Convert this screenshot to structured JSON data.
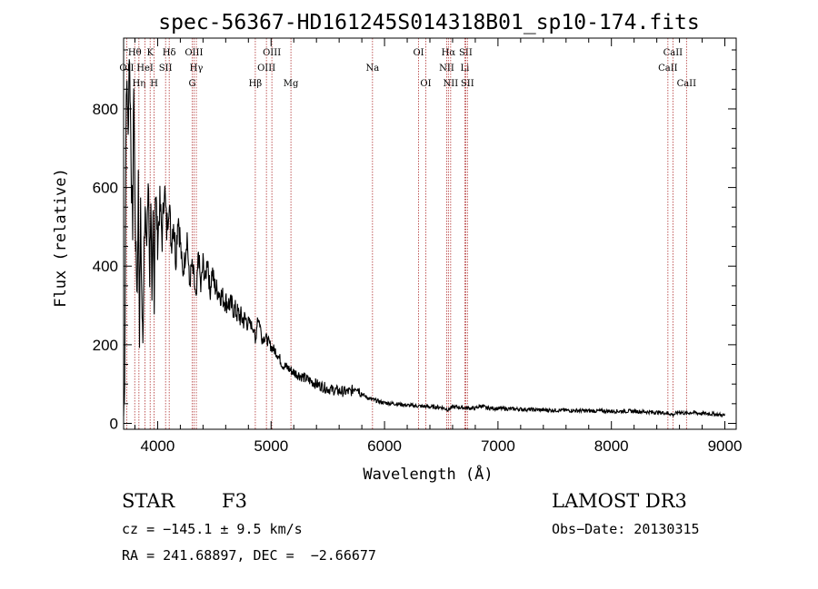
{
  "chart_data": {
    "type": "line",
    "title": "spec-56367-HD161245S014318B01_sp10-174.fits",
    "xlabel": "Wavelength (Å)",
    "ylabel": "Flux (relative)",
    "xlim": [
      3700,
      9100
    ],
    "ylim": [
      -15,
      980
    ],
    "xticks": [
      4000,
      5000,
      6000,
      7000,
      8000,
      9000
    ],
    "yticks": [
      0,
      200,
      400,
      600,
      800
    ],
    "xtick_labels": [
      "4000",
      "5000",
      "6000",
      "7000",
      "8000",
      "9000"
    ],
    "ytick_labels": [
      "0",
      "200",
      "400",
      "600",
      "800"
    ],
    "series": [
      {
        "name": "spectrum",
        "x": [
          3700,
          3710,
          3720,
          3730,
          3740,
          3750,
          3760,
          3770,
          3780,
          3790,
          3800,
          3810,
          3820,
          3830,
          3840,
          3850,
          3860,
          3870,
          3880,
          3890,
          3900,
          3910,
          3920,
          3930,
          3940,
          3950,
          3960,
          3970,
          3980,
          3990,
          4000,
          4020,
          4040,
          4060,
          4080,
          4100,
          4120,
          4140,
          4160,
          4180,
          4200,
          4220,
          4240,
          4260,
          4280,
          4300,
          4320,
          4340,
          4360,
          4380,
          4400,
          4420,
          4440,
          4460,
          4480,
          4500,
          4550,
          4600,
          4650,
          4700,
          4750,
          4800,
          4850,
          4861,
          4880,
          4900,
          4920,
          4950,
          5000,
          5050,
          5100,
          5150,
          5200,
          5300,
          5400,
          5500,
          5600,
          5700,
          5750,
          5800,
          5850,
          5900,
          6000,
          6100,
          6200,
          6300,
          6400,
          6500,
          6563,
          6600,
          6700,
          6800,
          6850,
          6900,
          7000,
          7200,
          7400,
          7600,
          7800,
          8000,
          8200,
          8400,
          8498,
          8542,
          8600,
          8662,
          8700,
          8800,
          8900,
          9000
        ],
        "y": [
          20,
          120,
          760,
          880,
          720,
          950,
          800,
          600,
          500,
          880,
          560,
          420,
          330,
          620,
          230,
          540,
          320,
          190,
          480,
          560,
          430,
          540,
          600,
          370,
          580,
          270,
          520,
          320,
          600,
          540,
          460,
          560,
          470,
          610,
          490,
          570,
          460,
          520,
          420,
          540,
          460,
          380,
          420,
          480,
          350,
          400,
          370,
          300,
          440,
          340,
          410,
          360,
          430,
          330,
          390,
          350,
          330,
          310,
          300,
          280,
          265,
          260,
          240,
          200,
          270,
          255,
          215,
          220,
          195,
          180,
          150,
          140,
          130,
          115,
          100,
          88,
          82,
          80,
          95,
          75,
          65,
          60,
          52,
          50,
          46,
          44,
          42,
          41,
          35,
          42,
          40,
          38,
          45,
          39,
          38,
          36,
          34,
          33,
          32,
          31,
          31,
          28,
          26,
          22,
          29,
          25,
          28,
          25,
          24,
          20
        ]
      }
    ],
    "line_markers": [
      {
        "label": "OII",
        "wl": 3727,
        "row": 2
      },
      {
        "label": "Hθ",
        "wl": 3798,
        "row": 1
      },
      {
        "label": "Hη",
        "wl": 3835,
        "row": 3
      },
      {
        "label": "HeI",
        "wl": 3889,
        "row": 2
      },
      {
        "label": "K",
        "wl": 3934,
        "row": 1
      },
      {
        "label": "SII",
        "wl": 4070,
        "row": 2
      },
      {
        "label": "H",
        "wl": 3969,
        "row": 3
      },
      {
        "label": "Hδ",
        "wl": 4102,
        "row": 1
      },
      {
        "label": "OIII",
        "wl": 4320,
        "row": 1
      },
      {
        "label": "Hγ",
        "wl": 4341,
        "row": 2
      },
      {
        "label": "G",
        "wl": 4305,
        "row": 3
      },
      {
        "label": "Hβ",
        "wl": 4861,
        "row": 3
      },
      {
        "label": "OIII",
        "wl": 5007,
        "row": 1
      },
      {
        "label": "OIII",
        "wl": 4959,
        "row": 2
      },
      {
        "label": "Mg",
        "wl": 5175,
        "row": 3
      },
      {
        "label": "Na",
        "wl": 5894,
        "row": 2
      },
      {
        "label": "OI",
        "wl": 6300,
        "row": 1
      },
      {
        "label": "OI",
        "wl": 6364,
        "row": 3
      },
      {
        "label": "Hα",
        "wl": 6563,
        "row": 1
      },
      {
        "label": "NII",
        "wl": 6548,
        "row": 2
      },
      {
        "label": "NII",
        "wl": 6583,
        "row": 3
      },
      {
        "label": "SII",
        "wl": 6716,
        "row": 1
      },
      {
        "label": "Li",
        "wl": 6708,
        "row": 2
      },
      {
        "label": "SII",
        "wl": 6731,
        "row": 3
      },
      {
        "label": "CaII",
        "wl": 8542,
        "row": 1
      },
      {
        "label": "CaII",
        "wl": 8498,
        "row": 2
      },
      {
        "label": "CaII",
        "wl": 8662,
        "row": 3
      }
    ]
  },
  "info": {
    "object_class": "STAR",
    "subclass": "F3",
    "survey": "LAMOST DR3",
    "redshift": "cz = −145.1 ± 9.5 km/s",
    "obs_date": "Obs−Date: 20130315",
    "coords": "RA = 241.68897, DEC =  −2.66677"
  }
}
